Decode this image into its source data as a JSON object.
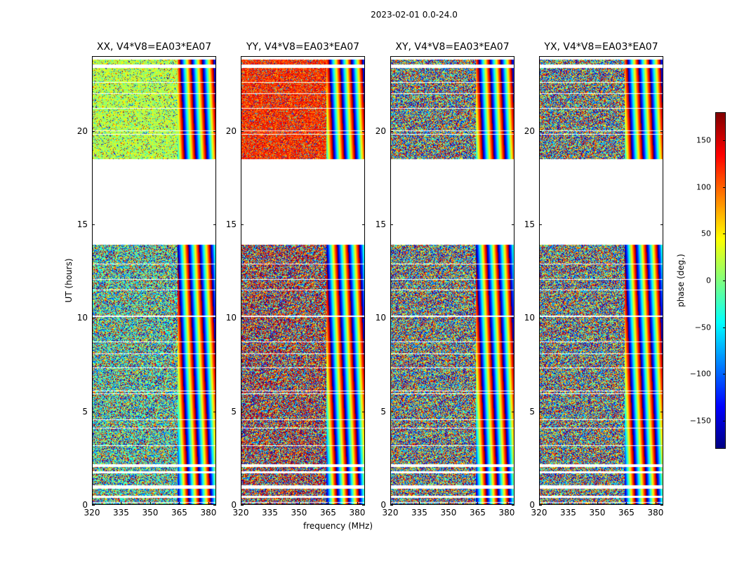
{
  "chart_data": {
    "type": "heatmap",
    "suptitle": "2023-02-01 0.0-24.0",
    "panels": [
      {
        "title": "XX, V4*V8=EA03*EA07",
        "base_phase_pre": -20,
        "base_phase_post": 20
      },
      {
        "title": "YY, V4*V8=EA03*EA07",
        "base_phase_pre": 150,
        "base_phase_post": 120
      },
      {
        "title": "XY, V4*V8=EA03*EA07",
        "base_phase_pre": null,
        "base_phase_post": null
      },
      {
        "title": "YX, V4*V8=EA03*EA07",
        "base_phase_pre": null,
        "base_phase_post": null
      }
    ],
    "xlabel": "frequency (MHz)",
    "ylabel": "UT (hours)",
    "xlim": [
      320,
      384
    ],
    "ylim": [
      0,
      24
    ],
    "xticks": [
      320,
      335,
      350,
      365,
      380
    ],
    "yticks": [
      0,
      5,
      10,
      15,
      20
    ],
    "colorbar": {
      "label": "phase (deg.)",
      "range": [
        -180,
        180
      ],
      "ticks": [
        -150,
        -100,
        -50,
        0,
        50,
        100,
        150
      ],
      "tick_labels": [
        "−150",
        "−100",
        "−50",
        "0",
        "50",
        "100",
        "150"
      ],
      "colormap": "jet"
    },
    "blank_ut_ranges_hours": [
      [
        0.45,
        0.52
      ],
      [
        0.88,
        1.08
      ],
      [
        1.7,
        1.78
      ],
      [
        2.05,
        2.2
      ],
      [
        13.95,
        18.5
      ],
      [
        23.4,
        23.55
      ],
      [
        23.85,
        24.0
      ]
    ],
    "dense_sampling_cutoff_mhz": 364
  }
}
